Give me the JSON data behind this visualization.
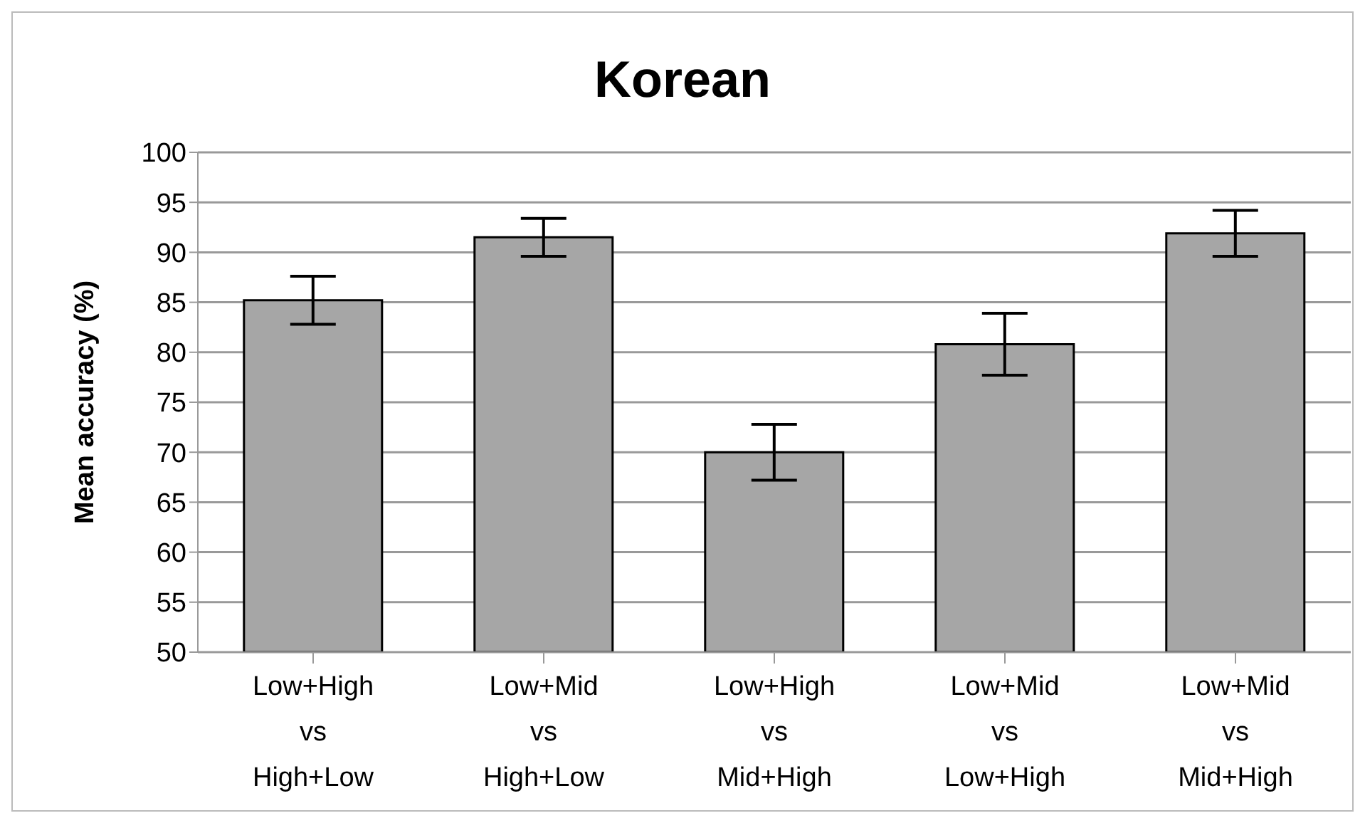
{
  "chart_data": {
    "type": "bar",
    "title": "Korean",
    "ylabel": "Mean accuracy (%)",
    "categories": [
      "Low+High\nvs\nHigh+Low",
      "Low+Mid\nvs\nHigh+Low",
      "Low+High\nvs\nMid+High",
      "Low+Mid\nvs\nLow+High",
      "Low+Mid\nvs\nMid+High"
    ],
    "values": [
      85.2,
      91.5,
      70.0,
      80.8,
      91.9
    ],
    "errors": [
      2.4,
      1.9,
      2.8,
      3.1,
      2.3
    ],
    "color": "#a6a6a6",
    "ylim": [
      50,
      100
    ],
    "yticks": [
      50,
      55,
      60,
      65,
      70,
      75,
      80,
      85,
      90,
      95,
      100
    ],
    "grid": "y"
  }
}
